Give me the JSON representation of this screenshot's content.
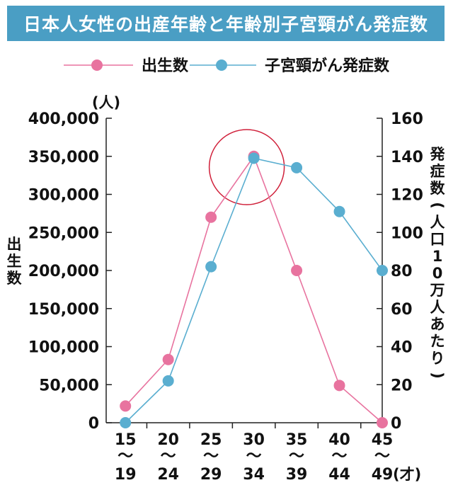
{
  "title": "日本人女性の出産年齢と年齢別子宮頸がん発症数",
  "chart_data": {
    "type": "line",
    "categories": [
      {
        "top": "15",
        "bottom": "19"
      },
      {
        "top": "20",
        "bottom": "24"
      },
      {
        "top": "25",
        "bottom": "29"
      },
      {
        "top": "30",
        "bottom": "34"
      },
      {
        "top": "35",
        "bottom": "39"
      },
      {
        "top": "40",
        "bottom": "44"
      },
      {
        "top": "45",
        "bottom": "49"
      }
    ],
    "x_unit": "(才)",
    "y_left": {
      "unit": "(人)",
      "label": "出生数",
      "ylim": [
        0,
        400000
      ],
      "ticks": [
        "0",
        "50,000",
        "100,000",
        "150,000",
        "200,000",
        "250,000",
        "300,000",
        "350,000",
        "400,000"
      ]
    },
    "y_right": {
      "label": "発症数(人口10万人あたり)",
      "ylim": [
        0,
        160
      ],
      "ticks": [
        "0",
        "20",
        "40",
        "60",
        "80",
        "100",
        "120",
        "140",
        "160"
      ]
    },
    "series": [
      {
        "name": "出生数",
        "axis": "left",
        "color": "#e8739f",
        "values": [
          22000,
          83000,
          270000,
          350000,
          200000,
          49000,
          0
        ]
      },
      {
        "name": "子宮頸がん発症数",
        "axis": "right",
        "color": "#5aaed0",
        "values": [
          0,
          22,
          82,
          139,
          134,
          111,
          80
        ]
      }
    ],
    "highlight": {
      "category_index": 3,
      "color": "#d0203a"
    }
  }
}
